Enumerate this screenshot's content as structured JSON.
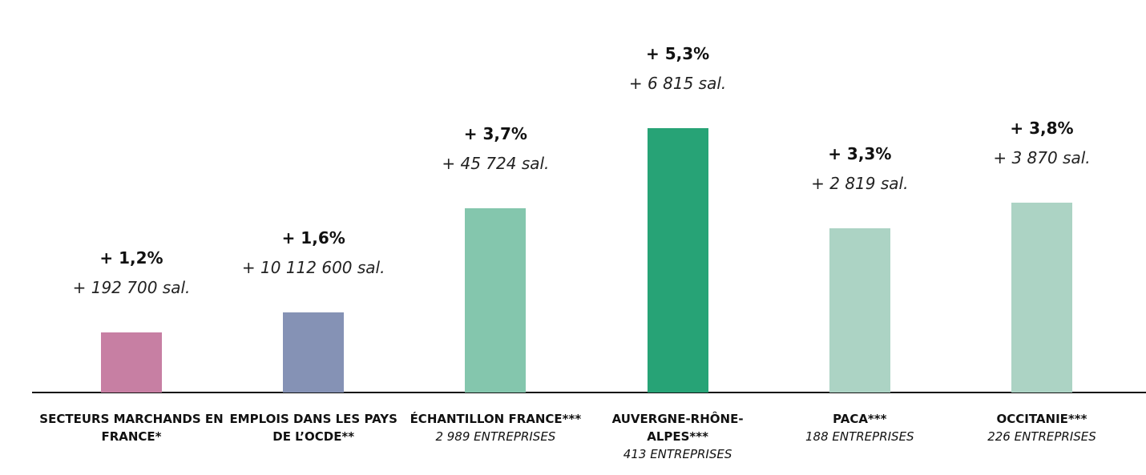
{
  "chart_data": {
    "type": "bar",
    "categories": [
      "SECTEURS MARCHANDS EN FRANCE*",
      "EMPLOIS DANS LES PAYS DE L’OCDE**",
      "ÉCHANTILLON FRANCE***",
      "AUVERGNE-RHÔNE-ALPES***",
      "PACA***",
      "OCCITANIE***"
    ],
    "category_notes": [
      null,
      null,
      "2 989 ENTREPRISES",
      "413 ENTREPRISES",
      "188 ENTREPRISES",
      "226 ENTREPRISES"
    ],
    "values": [
      1.2,
      1.6,
      3.7,
      5.3,
      3.3,
      3.8
    ],
    "value_labels": [
      "+ 1,2%",
      "+ 1,6%",
      "+ 3,7%",
      "+ 5,3%",
      "+ 3,3%",
      "+ 3,8%"
    ],
    "annotations": [
      "+ 192 700 sal.",
      "+ 10 112 600 sal.",
      "+ 45 724 sal.",
      "+ 6 815 sal.",
      "+ 2 819 sal.",
      "+ 3 870 sal."
    ],
    "colors": [
      "#c77fa3",
      "#8592b5",
      "#84c6ad",
      "#27a376",
      "#acd3c4",
      "#acd3c4"
    ]
  }
}
